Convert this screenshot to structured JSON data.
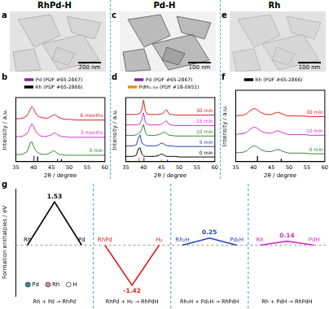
{
  "header": [
    "RhPd-H",
    "Pd-H",
    "Rh"
  ],
  "images": [
    {
      "panel": "a",
      "scale_bar": "200 nm"
    },
    {
      "panel": "c",
      "scale_bar": "100 nm"
    },
    {
      "panel": "e",
      "scale_bar": "100 nm"
    }
  ],
  "chart_data": [
    {
      "panel": "b",
      "type": "line",
      "x_label": "2θ / degree",
      "y_label": "Intensity / a.u.",
      "x": [
        35,
        36,
        37,
        38,
        38.5,
        39,
        39.5,
        40,
        40.5,
        41,
        41.5,
        42,
        43,
        44,
        45,
        45.5,
        46,
        46.5,
        47,
        47.5,
        48,
        49,
        50,
        52,
        54,
        56,
        58,
        60
      ],
      "xlim": [
        35,
        60
      ],
      "xticks": [
        35,
        40,
        45,
        50,
        55,
        60
      ],
      "ylim": [
        0,
        10
      ],
      "tick_labels": "x",
      "legend": "top",
      "series": [
        {
          "name": "0 min",
          "color": "#2e8b2e",
          "values": [
            1.1,
            1.1,
            1.2,
            1.5,
            2.0,
            2.9,
            3.1,
            2.4,
            1.8,
            1.5,
            1.3,
            1.2,
            1.1,
            1.2,
            1.5,
            1.7,
            1.6,
            1.4,
            1.2,
            1.1,
            1.1,
            1.0,
            1.0,
            1.0,
            1.0,
            1.0,
            1.0,
            1.0
          ]
        },
        {
          "name": "3 months",
          "color": "#cc33cc",
          "values": [
            3.9,
            3.9,
            4.0,
            4.3,
            4.7,
            5.4,
            5.9,
            5.5,
            4.8,
            4.4,
            4.2,
            4.0,
            3.9,
            4.0,
            4.2,
            4.4,
            4.5,
            4.3,
            4.1,
            4.0,
            3.9,
            3.9,
            3.8,
            3.8,
            3.8,
            3.8,
            3.8,
            3.8
          ]
        },
        {
          "name": "6 months",
          "color": "#e02020",
          "values": [
            6.7,
            6.7,
            6.8,
            7.1,
            7.5,
            8.1,
            8.6,
            8.3,
            7.6,
            7.2,
            7.0,
            6.9,
            6.8,
            6.8,
            7.1,
            7.3,
            7.3,
            7.1,
            6.9,
            6.8,
            6.7,
            6.6,
            6.6,
            6.5,
            6.5,
            6.5,
            6.5,
            6.5
          ]
        }
      ],
      "references": [
        {
          "name": "Pd (PDF #65-2867)",
          "color": "#7b2d8e",
          "positions": [
            40.1,
            46.7
          ],
          "heights": [
            0.9,
            0.45
          ]
        },
        {
          "name": "Rh (PDF #65-2866)",
          "color": "#000000",
          "positions": [
            41.1,
            47.8
          ],
          "heights": [
            0.8,
            0.4
          ]
        }
      ]
    },
    {
      "panel": "d",
      "type": "line",
      "x_label": "2θ / degree",
      "y_label": "Intensity / a.u.",
      "x": [
        35,
        36,
        37,
        38,
        38.5,
        39,
        39.5,
        40,
        40.5,
        41,
        41.5,
        42,
        43,
        44,
        45,
        45.5,
        46,
        46.5,
        47,
        47.5,
        48,
        49,
        50,
        52,
        54,
        56,
        58,
        60
      ],
      "xlim": [
        35,
        60
      ],
      "xticks": [
        35,
        40,
        45,
        50,
        55,
        60
      ],
      "ylim": [
        0,
        11
      ],
      "tick_labels": "x",
      "legend": "top",
      "series": [
        {
          "name": "0 min",
          "color": "#000000",
          "values": [
            0.9,
            0.9,
            0.9,
            1.1,
            2.2,
            2.4,
            1.3,
            1.0,
            0.9,
            0.9,
            0.9,
            0.9,
            0.9,
            1.0,
            1.3,
            1.2,
            1.0,
            0.9,
            0.9,
            0.9,
            0.9,
            0.9,
            0.8,
            0.8,
            0.8,
            0.8,
            0.8,
            0.8
          ]
        },
        {
          "name": "5 min",
          "color": "#1f3fbf",
          "values": [
            2.7,
            2.7,
            2.7,
            2.9,
            4.0,
            4.6,
            3.2,
            3.0,
            2.8,
            2.7,
            2.7,
            2.7,
            2.7,
            2.8,
            3.2,
            3.1,
            2.9,
            2.8,
            2.7,
            2.7,
            2.7,
            2.6,
            2.6,
            2.6,
            2.6,
            2.6,
            2.6,
            2.6
          ]
        },
        {
          "name": "10 min",
          "color": "#2e8b2e",
          "values": [
            4.5,
            4.5,
            4.5,
            4.6,
            4.8,
            5.0,
            5.6,
            6.4,
            5.0,
            4.6,
            4.5,
            4.5,
            4.5,
            4.6,
            4.8,
            5.0,
            5.1,
            4.8,
            4.6,
            4.5,
            4.5,
            4.4,
            4.4,
            4.4,
            4.4,
            4.4,
            4.4,
            4.4
          ]
        },
        {
          "name": "15 min",
          "color": "#cc33cc",
          "values": [
            6.3,
            6.3,
            6.3,
            6.3,
            6.4,
            6.5,
            7.2,
            8.4,
            6.8,
            6.4,
            6.3,
            6.3,
            6.3,
            6.3,
            6.4,
            6.6,
            6.9,
            7.0,
            6.5,
            6.3,
            6.3,
            6.2,
            6.2,
            6.2,
            6.2,
            6.2,
            6.2,
            6.2
          ]
        },
        {
          "name": "30 min",
          "color": "#e02020",
          "values": [
            8.1,
            8.1,
            8.1,
            8.1,
            8.2,
            8.3,
            8.9,
            10.6,
            8.7,
            8.2,
            8.1,
            8.1,
            8.1,
            8.1,
            8.2,
            8.3,
            8.7,
            8.9,
            8.3,
            8.1,
            8.1,
            8.0,
            8.0,
            8.0,
            8.0,
            8.0,
            8.0,
            8.0
          ]
        }
      ],
      "references": [
        {
          "name": "Pd (PDF #65-2867)",
          "color": "#7b2d8e",
          "positions": [
            40.1,
            46.7
          ],
          "heights": [
            0.7,
            0.35
          ]
        },
        {
          "name": "PdH₀.₇₀₆ (PDF #18-0951)",
          "color": "#e69500",
          "positions": [
            38.7,
            45.0
          ],
          "heights": [
            0.7,
            0.35
          ]
        }
      ]
    },
    {
      "panel": "f",
      "type": "line",
      "x_label": "2θ / degree",
      "y_label": "Intensity / a.u.",
      "x": [
        35,
        36,
        37,
        38,
        38.5,
        39,
        39.5,
        40,
        40.5,
        41,
        41.5,
        42,
        43,
        44,
        45,
        45.5,
        46,
        46.5,
        47,
        47.5,
        48,
        49,
        50,
        52,
        54,
        56,
        58,
        60
      ],
      "xlim": [
        35,
        60
      ],
      "xticks": [
        35,
        40,
        45,
        50,
        55,
        60
      ],
      "ylim": [
        0,
        10
      ],
      "tick_labels": "x",
      "legend": "top",
      "series": [
        {
          "name": "0 min",
          "color": "#2e8b2e",
          "values": [
            1.2,
            1.3,
            1.3,
            1.5,
            1.7,
            1.9,
            2.1,
            2.2,
            2.2,
            2.1,
            1.9,
            1.7,
            1.5,
            1.4,
            1.4,
            1.5,
            1.6,
            1.7,
            1.7,
            1.6,
            1.5,
            1.3,
            1.2,
            1.2,
            1.2,
            1.1,
            1.1,
            1.1
          ]
        },
        {
          "name": "10 min",
          "color": "#cc33cc",
          "values": [
            3.8,
            3.9,
            3.9,
            4.1,
            4.3,
            4.5,
            4.7,
            4.8,
            4.8,
            4.7,
            4.5,
            4.3,
            4.1,
            4.0,
            4.0,
            4.1,
            4.2,
            4.3,
            4.3,
            4.2,
            4.1,
            3.9,
            3.8,
            3.8,
            3.8,
            3.7,
            3.7,
            3.7
          ]
        },
        {
          "name": "30 min",
          "color": "#e02020",
          "values": [
            6.4,
            6.5,
            6.5,
            6.7,
            6.9,
            7.1,
            7.3,
            7.4,
            7.4,
            7.3,
            7.1,
            6.9,
            6.7,
            6.6,
            6.6,
            6.7,
            6.8,
            6.9,
            6.9,
            6.8,
            6.7,
            6.5,
            6.4,
            6.4,
            6.4,
            6.3,
            6.3,
            6.3
          ]
        }
      ],
      "references": [
        {
          "name": "Rh (PDF #65-2866)",
          "color": "#000000",
          "positions": [
            41.1,
            47.8
          ],
          "heights": [
            0.8,
            0.4
          ]
        }
      ]
    },
    {
      "panel": "g",
      "type": "line",
      "y_label": "Formation enthalpies / eV",
      "ylim": [
        -1.8,
        2.0
      ],
      "yticks": [
        0
      ],
      "grid": true,
      "tick_labels": false,
      "sections": [
        {
          "caption": "Rh + Pd → RhPd",
          "color": "#000000",
          "from": "Rh",
          "to": "Pd",
          "values": [
            0,
            1.53,
            0
          ],
          "value_labels": [
            null,
            "1.53",
            null
          ]
        },
        {
          "caption": "RhPd + H₂ → RhPdH",
          "color": "#e02020",
          "from": "RhPd",
          "to": "H₂",
          "values": [
            0,
            -1.42,
            0
          ],
          "value_labels": [
            null,
            "-1.42",
            null
          ]
        },
        {
          "caption": "Rh₂H + Pd₂H → RhPdH",
          "color": "#2040c0",
          "from": "Rh₂H",
          "to": "Pd₂H",
          "values": [
            0,
            0.25,
            0
          ],
          "value_labels": [
            null,
            "0.25",
            null
          ]
        },
        {
          "caption": "Rh + PdH → RhPdH",
          "color": "#cc33cc",
          "from": "Rh",
          "to": "PdH",
          "values": [
            0,
            0.14,
            0
          ],
          "value_labels": [
            null,
            "0.14",
            null
          ]
        }
      ],
      "atoms": [
        {
          "name": "Pd",
          "color": "#2a8f8a"
        },
        {
          "name": "Rh",
          "color": "#e87ca8"
        },
        {
          "name": "H",
          "color": "#ffffff"
        }
      ]
    }
  ]
}
